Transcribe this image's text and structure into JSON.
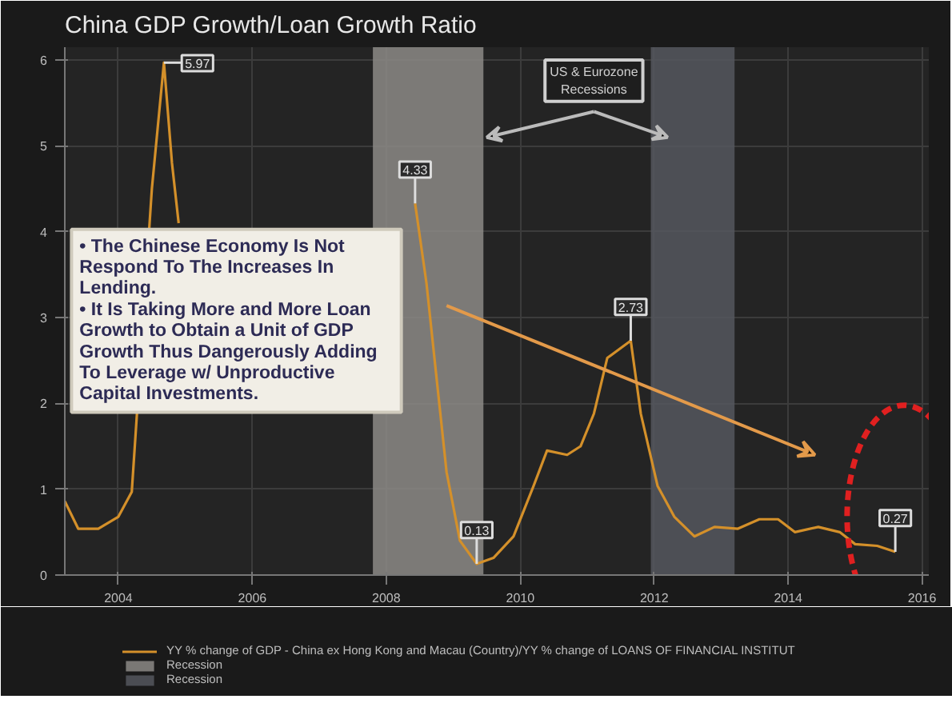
{
  "chart_data": {
    "type": "line",
    "title": "China GDP Growth/Loan Growth Ratio",
    "x": [
      2003.2,
      2003.4,
      2003.7,
      2004.0,
      2004.2,
      2004.5,
      2004.68,
      2004.8,
      2004.9,
      2006.5,
      2008.43,
      2008.6,
      2008.9,
      2009.1,
      2009.35,
      2009.6,
      2009.9,
      2010.2,
      2010.4,
      2010.7,
      2010.9,
      2011.1,
      2011.3,
      2011.65,
      2011.8,
      2012.05,
      2012.3,
      2012.6,
      2012.9,
      2013.25,
      2013.57,
      2013.85,
      2014.1,
      2014.45,
      2014.77,
      2015.0,
      2015.33,
      2015.6
    ],
    "series": [
      {
        "name": "YY % change of GDP - China ex Hong Kong and Macau (Country)/YY % change of LOANS OF FINANCIAL INSTITUT",
        "color": "#d4902a",
        "values": [
          0.86,
          0.54,
          0.54,
          0.68,
          0.97,
          4.5,
          5.97,
          4.8,
          4.1,
          null,
          4.33,
          3.4,
          1.2,
          0.4,
          0.13,
          0.2,
          0.45,
          1.04,
          1.45,
          1.4,
          1.5,
          1.88,
          2.53,
          2.73,
          1.88,
          1.04,
          0.68,
          0.45,
          0.56,
          0.54,
          0.65,
          0.65,
          0.5,
          0.56,
          0.5,
          0.36,
          0.34,
          0.27
        ]
      }
    ],
    "xlim": [
      2003.2,
      2016.1
    ],
    "ylim": [
      0,
      6.15
    ],
    "xticks": [
      2004,
      2006,
      2008,
      2010,
      2012,
      2014,
      2016
    ],
    "yticks": [
      0,
      1,
      2,
      3,
      4,
      5,
      6
    ],
    "bands": [
      {
        "axis": "x",
        "from": 2007.8,
        "to": 2009.45,
        "label": "Recession",
        "color": "#8c8a86"
      },
      {
        "axis": "x",
        "from": 2011.95,
        "to": 2013.2,
        "label": "Recession",
        "color": "#55575e"
      }
    ],
    "annotations": [
      "• The Chinese Economy Is Not\n   Respond To The Increases In\n   Lending.\n• It Is Taking More and More Loan\n   Growth to Obtain a Unit of GDP\n   Growth Thus Dangerously Adding\n   To Leverage w/ Unproductive\n   Capital Investments.",
      {
        "text": "US & Eurozone\nRecessions",
        "x": 2009.5,
        "y": 5.1
      },
      {
        "text": "5.97",
        "x": 2004.68,
        "y": 5.97
      },
      {
        "text": "4.33",
        "x": 2008.43,
        "y": 4.33
      },
      {
        "text": "0.13",
        "x": 2009.35,
        "y": 0.13
      },
      {
        "text": "2.73",
        "x": 2011.65,
        "y": 2.73
      },
      {
        "text": "0.27",
        "x": 2015.6,
        "y": 0.27
      }
    ],
    "grid": true,
    "legend": "bottom",
    "marker": "none",
    "line_style": "solid"
  }
}
